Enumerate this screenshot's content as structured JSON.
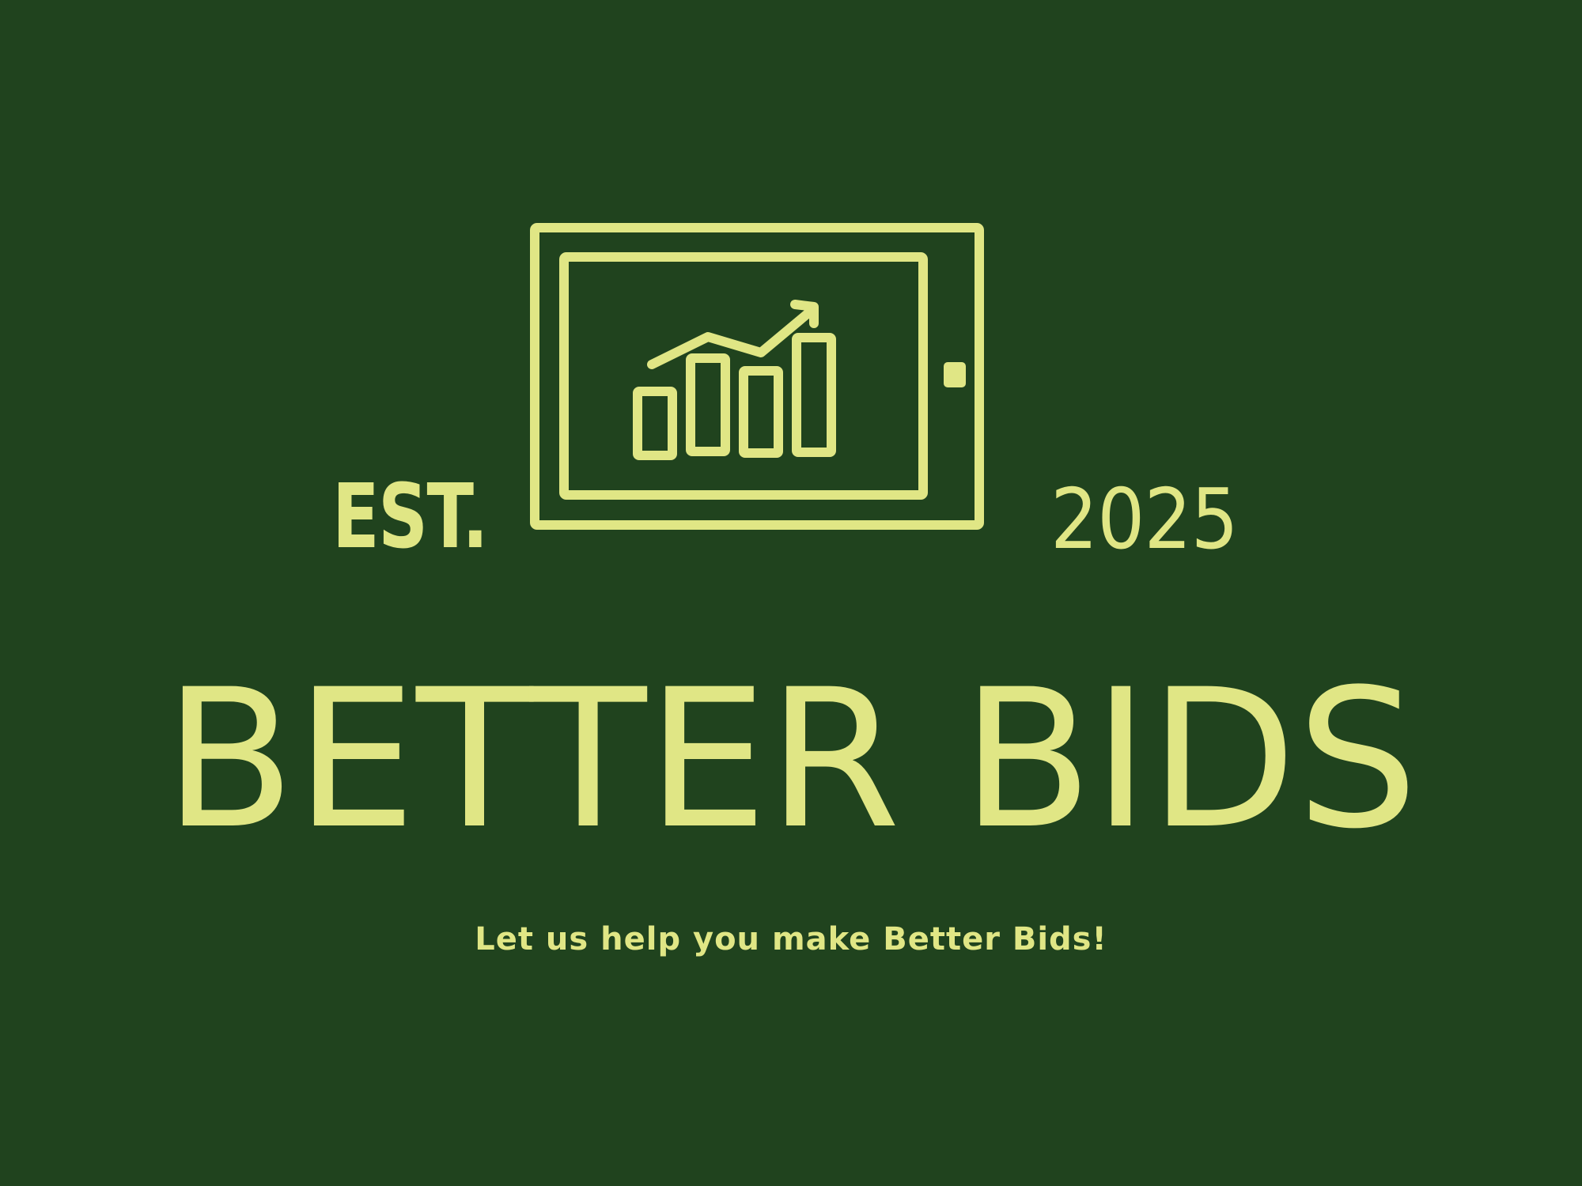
{
  "colors": {
    "background": "#20431e",
    "accent": "#e0e685"
  },
  "logo": {
    "icon": "tablet-growth-chart-icon",
    "est_label": "EST.",
    "year": "2025",
    "brand_name": "BETTER BIDS",
    "tagline": "Let us help you make Better Bids!"
  }
}
